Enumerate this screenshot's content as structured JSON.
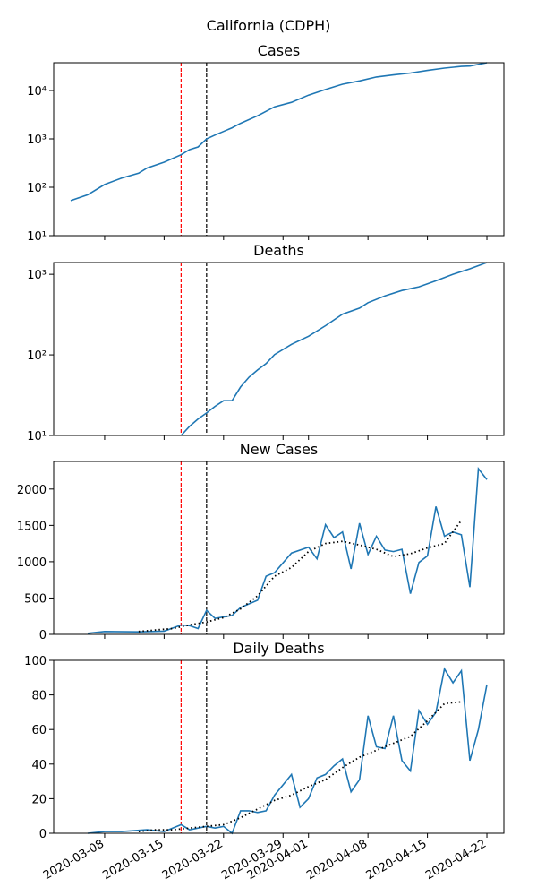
{
  "title": "California (CDPH)",
  "chart_data": [
    {
      "type": "line",
      "title": "Cases",
      "yscale": "log",
      "xlim": [
        "2020-03-02",
        "2020-04-24"
      ],
      "ylim": [
        10,
        37500
      ],
      "yticks": [
        {
          "value": 10,
          "label": "10¹"
        },
        {
          "value": 100,
          "label": "10²"
        },
        {
          "value": 1000,
          "label": "10³"
        },
        {
          "value": 10000,
          "label": "10⁴"
        }
      ],
      "vlines": [
        {
          "x": "2020-03-17",
          "color": "red"
        },
        {
          "x": "2020-03-20",
          "color": "black"
        }
      ],
      "series": [
        {
          "color": "#1f77b4",
          "style": "solid",
          "x": [
            "2020-03-04",
            "2020-03-06",
            "2020-03-08",
            "2020-03-10",
            "2020-03-12",
            "2020-03-13",
            "2020-03-15",
            "2020-03-17",
            "2020-03-18",
            "2020-03-19",
            "2020-03-20",
            "2020-03-21",
            "2020-03-23",
            "2020-03-24",
            "2020-03-26",
            "2020-03-28",
            "2020-03-30",
            "2020-04-01",
            "2020-04-03",
            "2020-04-05",
            "2020-04-07",
            "2020-04-09",
            "2020-04-11",
            "2020-04-13",
            "2020-04-15",
            "2020-04-17",
            "2020-04-19",
            "2020-04-20",
            "2020-04-22"
          ],
          "values": [
            53,
            70,
            114,
            155,
            195,
            250,
            330,
            470,
            600,
            680,
            1000,
            1200,
            1700,
            2100,
            3000,
            4600,
            5700,
            8000,
            10500,
            13500,
            15800,
            19000,
            21000,
            23000,
            26000,
            29000,
            31500,
            32000,
            37500
          ]
        }
      ]
    },
    {
      "type": "line",
      "title": "Deaths",
      "yscale": "log",
      "xlim": [
        "2020-03-02",
        "2020-04-24"
      ],
      "ylim": [
        10,
        1400
      ],
      "yticks": [
        {
          "value": 10,
          "label": "10¹"
        },
        {
          "value": 100,
          "label": "10²"
        },
        {
          "value": 1000,
          "label": "10³"
        }
      ],
      "vlines": [
        {
          "x": "2020-03-17",
          "color": "red"
        },
        {
          "x": "2020-03-20",
          "color": "black"
        }
      ],
      "series": [
        {
          "color": "#1f77b4",
          "style": "solid",
          "x": [
            "2020-03-17",
            "2020-03-18",
            "2020-03-19",
            "2020-03-20",
            "2020-03-21",
            "2020-03-22",
            "2020-03-23",
            "2020-03-24",
            "2020-03-25",
            "2020-03-26",
            "2020-03-27",
            "2020-03-28",
            "2020-03-30",
            "2020-04-01",
            "2020-04-03",
            "2020-04-05",
            "2020-04-07",
            "2020-04-08",
            "2020-04-10",
            "2020-04-12",
            "2020-04-14",
            "2020-04-16",
            "2020-04-18",
            "2020-04-20",
            "2020-04-22"
          ],
          "values": [
            10,
            13,
            16,
            19,
            23,
            27,
            27,
            40,
            53,
            65,
            78,
            101,
            135,
            170,
            230,
            320,
            380,
            445,
            540,
            630,
            700,
            830,
            1000,
            1170,
            1400
          ]
        }
      ]
    },
    {
      "type": "line",
      "title": "New Cases",
      "xlim": [
        "2020-03-02",
        "2020-04-24"
      ],
      "ylim": [
        0,
        2380
      ],
      "yticks": [
        0,
        500,
        1000,
        1500,
        2000
      ],
      "vlines": [
        {
          "x": "2020-03-17",
          "color": "red"
        },
        {
          "x": "2020-03-20",
          "color": "black"
        }
      ],
      "series": [
        {
          "color": "#1f77b4",
          "style": "solid",
          "x": [
            "2020-03-06",
            "2020-03-08",
            "2020-03-12",
            "2020-03-15",
            "2020-03-17",
            "2020-03-18",
            "2020-03-19",
            "2020-03-20",
            "2020-03-21",
            "2020-03-23",
            "2020-03-24",
            "2020-03-26",
            "2020-03-27",
            "2020-03-28",
            "2020-03-30",
            "2020-04-01",
            "2020-04-02",
            "2020-04-03",
            "2020-04-04",
            "2020-04-05",
            "2020-04-06",
            "2020-04-07",
            "2020-04-08",
            "2020-04-09",
            "2020-04-10",
            "2020-04-11",
            "2020-04-12",
            "2020-04-13",
            "2020-04-14",
            "2020-04-15",
            "2020-04-16",
            "2020-04-17",
            "2020-04-18",
            "2020-04-19",
            "2020-04-20",
            "2020-04-21",
            "2020-04-22"
          ],
          "values": [
            15,
            40,
            35,
            45,
            130,
            120,
            80,
            330,
            220,
            260,
            370,
            470,
            800,
            850,
            1120,
            1200,
            1040,
            1510,
            1330,
            1410,
            900,
            1530,
            1100,
            1350,
            1160,
            1140,
            1170,
            560,
            990,
            1080,
            1760,
            1350,
            1410,
            1370,
            650,
            2280,
            2130
          ]
        },
        {
          "color": "black",
          "style": "dotted",
          "x": [
            "2020-03-12",
            "2020-03-14",
            "2020-03-16",
            "2020-03-18",
            "2020-03-20",
            "2020-03-22",
            "2020-03-24",
            "2020-03-26",
            "2020-03-28",
            "2020-03-30",
            "2020-04-01",
            "2020-04-03",
            "2020-04-05",
            "2020-04-07",
            "2020-04-09",
            "2020-04-11",
            "2020-04-13",
            "2020-04-15",
            "2020-04-17",
            "2020-04-19"
          ],
          "values": [
            40,
            60,
            80,
            130,
            170,
            230,
            350,
            530,
            800,
            920,
            1140,
            1250,
            1280,
            1230,
            1170,
            1070,
            1110,
            1190,
            1250,
            1570
          ]
        }
      ]
    },
    {
      "type": "line",
      "title": "Daily Deaths",
      "xlim": [
        "2020-03-02",
        "2020-04-24"
      ],
      "ylim": [
        0,
        100
      ],
      "yticks": [
        0,
        20,
        40,
        60,
        80,
        100
      ],
      "xticks": [
        "2020-03-08",
        "2020-03-15",
        "2020-03-22",
        "2020-03-29",
        "2020-04-01",
        "2020-04-08",
        "2020-04-15",
        "2020-04-22"
      ],
      "vlines": [
        {
          "x": "2020-03-17",
          "color": "red"
        },
        {
          "x": "2020-03-20",
          "color": "black"
        }
      ],
      "series": [
        {
          "color": "#1f77b4",
          "style": "solid",
          "x": [
            "2020-03-06",
            "2020-03-08",
            "2020-03-10",
            "2020-03-13",
            "2020-03-15",
            "2020-03-16",
            "2020-03-17",
            "2020-03-18",
            "2020-03-19",
            "2020-03-20",
            "2020-03-21",
            "2020-03-22",
            "2020-03-23",
            "2020-03-24",
            "2020-03-25",
            "2020-03-26",
            "2020-03-27",
            "2020-03-28",
            "2020-03-29",
            "2020-03-30",
            "2020-03-31",
            "2020-04-01",
            "2020-04-02",
            "2020-04-03",
            "2020-04-04",
            "2020-04-05",
            "2020-04-06",
            "2020-04-07",
            "2020-04-08",
            "2020-04-09",
            "2020-04-10",
            "2020-04-11",
            "2020-04-12",
            "2020-04-13",
            "2020-04-14",
            "2020-04-15",
            "2020-04-16",
            "2020-04-17",
            "2020-04-18",
            "2020-04-19",
            "2020-04-20",
            "2020-04-21",
            "2020-04-22"
          ],
          "values": [
            0,
            1,
            1,
            2,
            1,
            3,
            5,
            2,
            3,
            4,
            3,
            4,
            0,
            13,
            13,
            12,
            13,
            22,
            28,
            34,
            15,
            20,
            32,
            34,
            39,
            43,
            24,
            31,
            68,
            50,
            49,
            68,
            42,
            36,
            71,
            63,
            70,
            95,
            87,
            94,
            42,
            60,
            86
          ]
        },
        {
          "color": "black",
          "style": "dotted",
          "x": [
            "2020-03-12",
            "2020-03-14",
            "2020-03-16",
            "2020-03-18",
            "2020-03-20",
            "2020-03-22",
            "2020-03-24",
            "2020-03-26",
            "2020-03-28",
            "2020-03-30",
            "2020-04-01",
            "2020-04-03",
            "2020-04-05",
            "2020-04-07",
            "2020-04-09",
            "2020-04-11",
            "2020-04-13",
            "2020-04-15",
            "2020-04-17",
            "2020-04-19"
          ],
          "values": [
            1,
            2,
            2,
            3,
            4,
            5,
            9,
            14,
            19,
            22,
            27,
            31,
            38,
            44,
            48,
            52,
            56,
            65,
            75,
            76
          ]
        }
      ]
    }
  ]
}
